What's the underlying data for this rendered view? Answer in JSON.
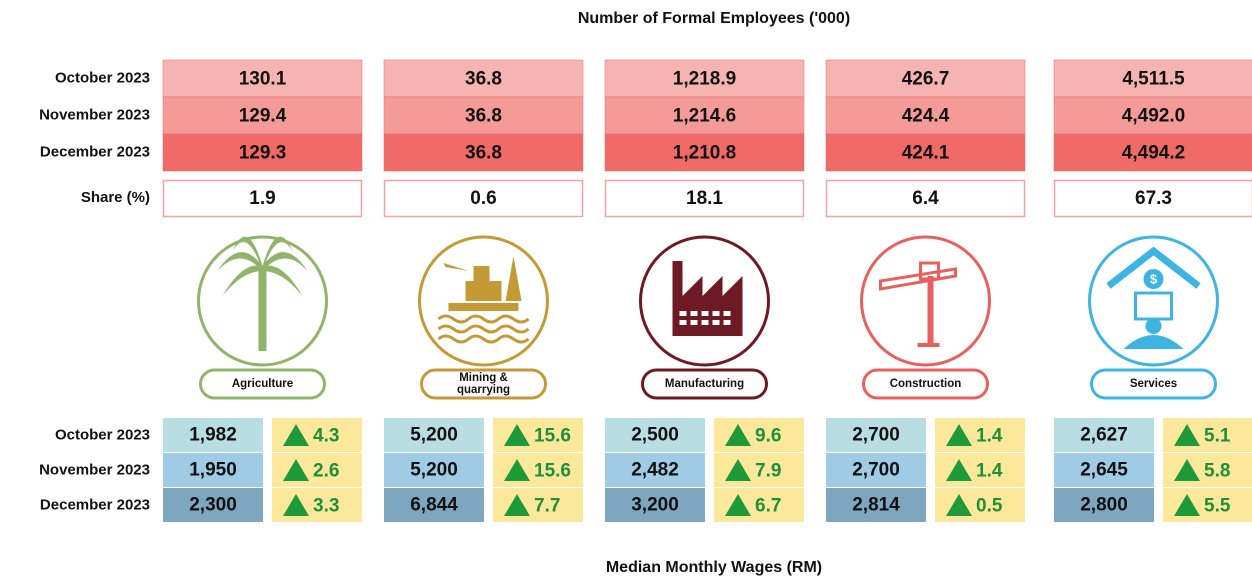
{
  "title": "Number of Formal Employees ('000)",
  "footer_title": "Median Monthly Wages (RM)",
  "employment": {
    "row_labels": [
      "October 2023",
      "November 2023",
      "December 2023",
      "Share (%)"
    ],
    "sectors": [
      {
        "name": "Agriculture",
        "values": [
          "130.1",
          "129.4",
          "129.3"
        ],
        "share": "1.9"
      },
      {
        "name": "Mining & quarrying",
        "values": [
          "36.8",
          "36.8",
          "36.8"
        ],
        "share": "0.6"
      },
      {
        "name": "Manufacturing",
        "values": [
          "1,218.9",
          "1,214.6",
          "1,210.8"
        ],
        "share": "18.1"
      },
      {
        "name": "Construction",
        "values": [
          "426.7",
          "424.4",
          "424.1"
        ],
        "share": "6.4"
      },
      {
        "name": "Services",
        "values": [
          "4,511.5",
          "4,492.0",
          "4,494.2"
        ],
        "share": "67.3"
      }
    ]
  },
  "wages": {
    "row_labels": [
      "October 2023",
      "November 2023",
      "December 2023"
    ],
    "sectors": [
      {
        "wages": [
          "1,982",
          "1,950",
          "2,300"
        ],
        "growth": [
          "4.3",
          "2.6",
          "3.3"
        ]
      },
      {
        "wages": [
          "5,200",
          "5,200",
          "6,844"
        ],
        "growth": [
          "15.6",
          "15.6",
          "7.7"
        ]
      },
      {
        "wages": [
          "2,500",
          "2,482",
          "3,200"
        ],
        "growth": [
          "9.6",
          "7.9",
          "6.7"
        ]
      },
      {
        "wages": [
          "2,700",
          "2,700",
          "2,814"
        ],
        "growth": [
          "1.4",
          "1.4",
          "0.5"
        ]
      },
      {
        "wages": [
          "2,627",
          "2,645",
          "2,800"
        ],
        "growth": [
          "5.1",
          "5.8",
          "5.5"
        ]
      }
    ]
  }
}
